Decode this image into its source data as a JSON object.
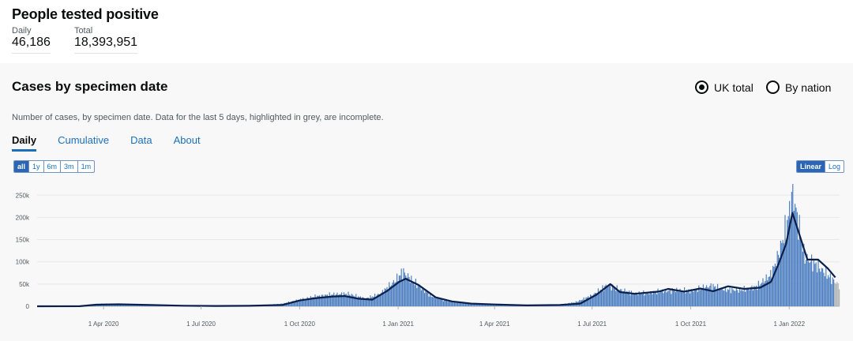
{
  "header": {
    "title": "People tested positive"
  },
  "summary": {
    "daily_label": "Daily",
    "daily_value": "46,186",
    "total_label": "Total",
    "total_value": "18,393,951"
  },
  "card": {
    "title": "Cases by specimen date",
    "description": "Number of cases, by specimen date. Data for the last 5 days, highlighted in grey, are incomplete.",
    "options": [
      "UK total",
      "By nation"
    ],
    "selected_option": "UK total"
  },
  "tabs": [
    "Daily",
    "Cumulative",
    "Data",
    "About"
  ],
  "active_tab": "Daily",
  "time_range": [
    "all",
    "1y",
    "6m",
    "3m",
    "1m"
  ],
  "selected_range": "all",
  "scale_options": [
    "Linear",
    "Log"
  ],
  "selected_scale": "Linear",
  "colors": {
    "bar": "#4f81c2",
    "line": "#0b1f4a",
    "incomplete": "#b1b4b6",
    "accent": "#1d70b8"
  },
  "chart_data": {
    "type": "bar",
    "title": "",
    "x_tick_labels": [
      "1 Apr 2020",
      "1 Jul 2020",
      "1 Oct 2020",
      "1 Jan 2021",
      "1 Apr 2021",
      "1 Jul 2021",
      "1 Oct 2021",
      "1 Jan 2022"
    ],
    "y_tick_labels": [
      "0",
      "50k",
      "100k",
      "150k",
      "200k",
      "250k"
    ],
    "ylim": [
      0,
      270000
    ],
    "grid": true,
    "series": [
      {
        "type": "bar",
        "note": "daily cases, sampled weekly",
        "x": [
          "2020-01-30",
          "2020-02-15",
          "2020-03-01",
          "2020-03-15",
          "2020-04-01",
          "2020-04-15",
          "2020-05-01",
          "2020-05-15",
          "2020-06-01",
          "2020-06-15",
          "2020-07-01",
          "2020-07-15",
          "2020-08-01",
          "2020-08-15",
          "2020-09-01",
          "2020-09-15",
          "2020-10-01",
          "2020-10-15",
          "2020-11-01",
          "2020-11-15",
          "2020-12-01",
          "2020-12-15",
          "2020-12-29",
          "2021-01-05",
          "2021-01-15",
          "2021-02-01",
          "2021-02-15",
          "2021-03-01",
          "2021-03-15",
          "2021-04-01",
          "2021-04-15",
          "2021-05-01",
          "2021-05-15",
          "2021-06-01",
          "2021-06-15",
          "2021-07-01",
          "2021-07-15",
          "2021-07-25",
          "2021-08-10",
          "2021-09-01",
          "2021-09-15",
          "2021-10-01",
          "2021-10-20",
          "2021-11-01",
          "2021-11-15",
          "2021-12-01",
          "2021-12-15",
          "2021-12-22",
          "2021-12-29",
          "2022-01-04",
          "2022-01-08",
          "2022-01-15",
          "2022-01-25",
          "2022-02-01",
          "2022-02-10",
          "2022-02-17"
        ],
        "y": [
          0,
          100,
          600,
          2500,
          5500,
          5000,
          4500,
          3200,
          1800,
          1100,
          800,
          800,
          1100,
          1500,
          3000,
          6000,
          15000,
          22000,
          27000,
          28000,
          17000,
          28000,
          58000,
          78000,
          55000,
          22000,
          12000,
          8000,
          6000,
          4500,
          3000,
          2500,
          2500,
          4000,
          9000,
          25000,
          48000,
          38000,
          28000,
          33000,
          36000,
          35000,
          46000,
          38000,
          36000,
          44000,
          72000,
          120000,
          180000,
          255000,
          200000,
          110000,
          95000,
          80000,
          60000,
          45000
        ]
      },
      {
        "type": "line",
        "note": "7-day average",
        "x": [
          "2020-01-30",
          "2020-03-10",
          "2020-03-25",
          "2020-04-15",
          "2020-05-15",
          "2020-06-15",
          "2020-07-15",
          "2020-08-15",
          "2020-09-15",
          "2020-10-01",
          "2020-10-15",
          "2020-11-01",
          "2020-11-12",
          "2020-11-25",
          "2020-12-08",
          "2020-12-22",
          "2021-01-02",
          "2021-01-08",
          "2021-01-20",
          "2021-02-05",
          "2021-02-20",
          "2021-03-10",
          "2021-04-01",
          "2021-05-01",
          "2021-06-01",
          "2021-06-20",
          "2021-07-05",
          "2021-07-18",
          "2021-07-27",
          "2021-08-10",
          "2021-09-01",
          "2021-09-10",
          "2021-09-25",
          "2021-10-10",
          "2021-10-22",
          "2021-11-05",
          "2021-11-20",
          "2021-12-05",
          "2021-12-15",
          "2021-12-22",
          "2021-12-29",
          "2022-01-04",
          "2022-01-10",
          "2022-01-18",
          "2022-01-28",
          "2022-02-06",
          "2022-02-13"
        ],
        "y": [
          0,
          200,
          3500,
          4500,
          3000,
          1200,
          700,
          1000,
          3000,
          13000,
          18000,
          22000,
          23000,
          17000,
          15000,
          35000,
          55000,
          62000,
          48000,
          20000,
          11000,
          6000,
          4000,
          2000,
          3000,
          6000,
          26000,
          50000,
          32000,
          28000,
          33000,
          39000,
          33000,
          40000,
          34000,
          45000,
          39000,
          42000,
          55000,
          95000,
          140000,
          210000,
          165000,
          105000,
          105000,
          85000,
          65000
        ]
      }
    ]
  }
}
